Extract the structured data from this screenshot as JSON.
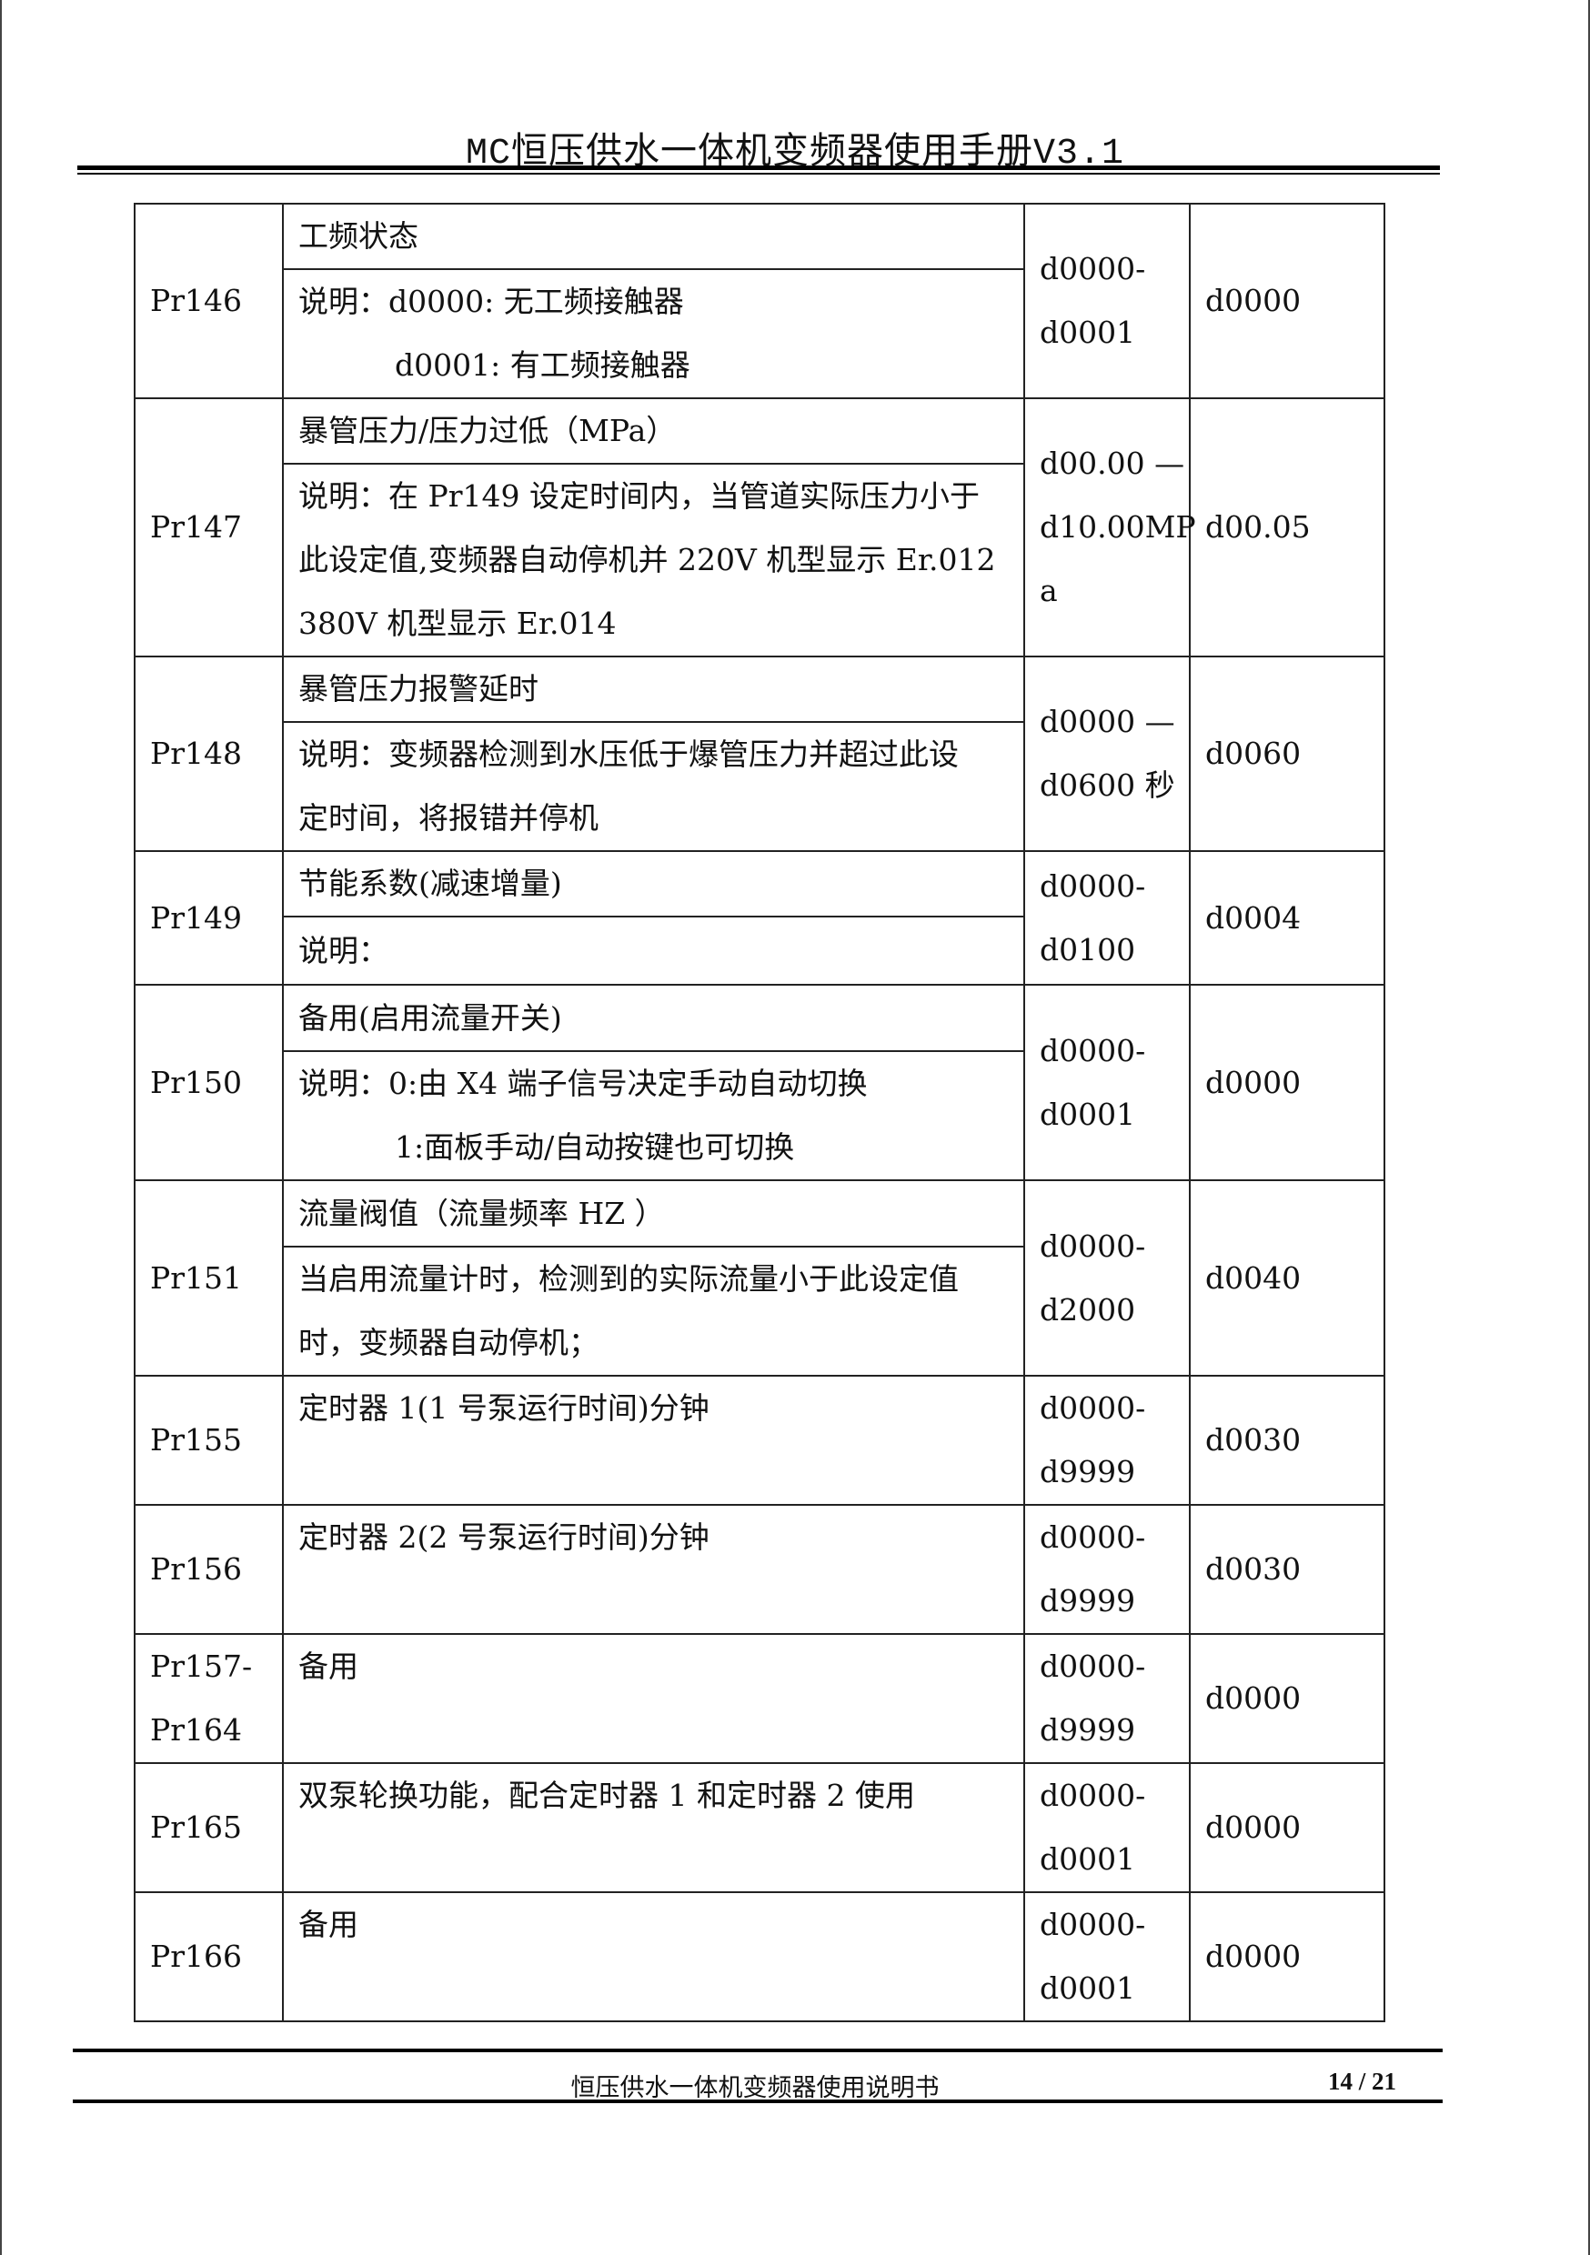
{
  "header": {
    "title": "MC恒压供水一体机变频器使用手册V3.1"
  },
  "rows": [
    {
      "param": "Pr146",
      "title": "工频状态",
      "desc": [
        "说明：d0000: 无工频接触器",
        "d0001: 有工频接触器"
      ],
      "desc_indent": [
        false,
        true
      ],
      "range": [
        "d0000-",
        "d0001"
      ],
      "default": "d0000"
    },
    {
      "param": "Pr147",
      "title": "暴管压力/压力过低（MPa）",
      "desc": [
        "说明：在 Pr149 设定时间内，当管道实际压力小于",
        "此设定值,变频器自动停机并 220V 机型显示 Er.012",
        "380V 机型显示 Er.014"
      ],
      "desc_indent": [
        false,
        false,
        false
      ],
      "range": [
        "d00.00 —",
        "d10.00MP",
        "a"
      ],
      "default": "d00.05"
    },
    {
      "param": "Pr148",
      "title": "暴管压力报警延时",
      "desc": [
        "说明：变频器检测到水压低于爆管压力并超过此设",
        "定时间，将报错并停机"
      ],
      "desc_indent": [
        false,
        false
      ],
      "range": [
        "d0000  —",
        "d0600 秒"
      ],
      "default": "d0060"
    },
    {
      "param": "Pr149",
      "title": "节能系数(减速增量)",
      "desc": [
        "说明："
      ],
      "desc_indent": [
        false
      ],
      "range": [
        "d0000-",
        "d0100"
      ],
      "default": "d0004"
    },
    {
      "param": "Pr150",
      "title": "备用(启用流量开关)",
      "desc": [
        "说明：0:由 X4 端子信号决定手动自动切换",
        "1:面板手动/自动按键也可切换"
      ],
      "desc_indent": [
        false,
        true
      ],
      "range": [
        "d0000-",
        "d0001"
      ],
      "default": "d0000"
    },
    {
      "param": "Pr151",
      "title": "流量阀值（流量频率 HZ ）",
      "desc": [
        "当启用流量计时，检测到的实际流量小于此设定值",
        "时，变频器自动停机；"
      ],
      "desc_indent": [
        false,
        false
      ],
      "range": [
        "d0000-",
        "d2000"
      ],
      "default": "d0040"
    }
  ],
  "simple_rows": [
    {
      "param": [
        "Pr155"
      ],
      "title": "定时器 1(1 号泵运行时间)分钟",
      "range": [
        "d0000-",
        "d9999"
      ],
      "default": "d0030"
    },
    {
      "param": [
        "Pr156"
      ],
      "title": "定时器 2(2 号泵运行时间)分钟",
      "range": [
        "d0000-",
        "d9999"
      ],
      "default": "d0030"
    },
    {
      "param": [
        "Pr157-",
        "Pr164"
      ],
      "title": "备用",
      "range": [
        "d0000-",
        "d9999"
      ],
      "default": "d0000"
    },
    {
      "param": [
        "Pr165"
      ],
      "title": "双泵轮换功能，配合定时器 1 和定时器 2 使用",
      "range": [
        "d0000-",
        "d0001"
      ],
      "default": "d0000"
    },
    {
      "param": [
        "Pr166"
      ],
      "title": "备用",
      "range": [
        "d0000-",
        "d0001"
      ],
      "default": "d0000"
    }
  ],
  "footer": {
    "title": "恒压供水一体机变频器使用说明书",
    "page": "14 / 21"
  }
}
